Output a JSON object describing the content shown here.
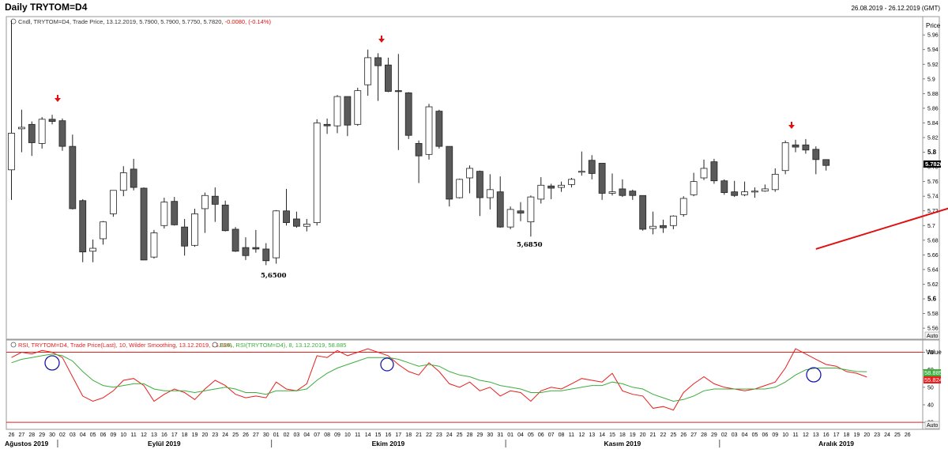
{
  "window": {
    "title": "Daily TRYTOM=D4",
    "date_range": "26.08.2019 - 26.12.2019 (GMT)"
  },
  "price_pane": {
    "legend": {
      "prefix": "Cndl, TRYTOM=D4, Trade Price, 13.12.2019, 5.7900, 5.7900, 5.7750, 5.7820,",
      "change": "-0.0080, (-0.14%)"
    },
    "axis_title": "Price",
    "last_value": "5.7820",
    "auto_label": "Auto",
    "colors": {
      "up_fill": "#ffffff",
      "down_fill": "#5a5a5a",
      "last_tag": "#000000"
    }
  },
  "rsi_pane": {
    "legend_rsi": "RSI, TRYTOM=D4, Trade Price(Last), 10, Wilder Smoothing, 13.12.2019, 55.824,",
    "legend_ema": "EMA, RSI(TRYTOM=D4), 8, 13.12.2019, 58.885",
    "axis_title": "Value",
    "tag_ema": "58.885",
    "tag_rsi": "55.824",
    "auto_label": "Auto",
    "colors": {
      "rsi": "#e81e1e",
      "ema": "#3cae3c",
      "levels": "#e81e1e",
      "circles": "#1a1aa8"
    }
  },
  "x_axis": {
    "day_labels": [
      "26",
      "27",
      "28",
      "29",
      "30",
      "02",
      "03",
      "04",
      "05",
      "06",
      "09",
      "10",
      "11",
      "12",
      "13",
      "16",
      "17",
      "18",
      "19",
      "20",
      "23",
      "24",
      "25",
      "26",
      "27",
      "30",
      "01",
      "02",
      "03",
      "04",
      "07",
      "08",
      "09",
      "10",
      "11",
      "14",
      "15",
      "16",
      "17",
      "18",
      "21",
      "22",
      "23",
      "24",
      "25",
      "28",
      "29",
      "30",
      "31",
      "01",
      "04",
      "05",
      "06",
      "07",
      "08",
      "11",
      "12",
      "13",
      "14",
      "15",
      "18",
      "19",
      "20",
      "21",
      "22",
      "25",
      "26",
      "27",
      "28",
      "29",
      "02",
      "03",
      "04",
      "05",
      "06",
      "09",
      "10",
      "11",
      "12",
      "13",
      "16",
      "17",
      "18",
      "19",
      "20",
      "23",
      "24",
      "25",
      "26"
    ],
    "month_labels": [
      "Ağustos 2019",
      "Eylül 2019",
      "Ekim 2019",
      "Kasım 2019",
      "Aralık 2019"
    ]
  },
  "annotations": {
    "low_1": "5,6500",
    "low_2": "5,6850"
  },
  "chart_data": [
    {
      "type": "candlestick",
      "ylabel": "Price",
      "ylim": [
        5.545,
        5.985
      ],
      "y_ticks": [
        5.56,
        5.58,
        5.6,
        5.62,
        5.64,
        5.66,
        5.68,
        5.7,
        5.72,
        5.74,
        5.76,
        5.78,
        5.8,
        5.82,
        5.84,
        5.86,
        5.88,
        5.9,
        5.92,
        5.94,
        5.96
      ],
      "y_tick_labels": [
        "5.56",
        "5.58",
        "5.6",
        "5.62",
        "5.64",
        "5.66",
        "5.68",
        "5.7",
        "5.72",
        "5.74",
        "5.76",
        "5.78",
        "5.8",
        "5.82",
        "5.84",
        "5.86",
        "5.88",
        "5.9",
        "5.92",
        "5.94",
        "5.96"
      ],
      "grid": false,
      "candles": [
        {
          "o": 5.776,
          "h": 5.98,
          "l": 5.735,
          "c": 5.826
        },
        {
          "o": 5.832,
          "h": 5.858,
          "l": 5.8,
          "c": 5.834
        },
        {
          "o": 5.838,
          "h": 5.842,
          "l": 5.795,
          "c": 5.813
        },
        {
          "o": 5.812,
          "h": 5.848,
          "l": 5.805,
          "c": 5.845
        },
        {
          "o": 5.845,
          "h": 5.851,
          "l": 5.838,
          "c": 5.842
        },
        {
          "o": 5.843,
          "h": 5.846,
          "l": 5.802,
          "c": 5.808
        },
        {
          "o": 5.808,
          "h": 5.824,
          "l": 5.722,
          "c": 5.723
        },
        {
          "o": 5.734,
          "h": 5.736,
          "l": 5.65,
          "c": 5.664
        },
        {
          "o": 5.665,
          "h": 5.681,
          "l": 5.65,
          "c": 5.669
        },
        {
          "o": 5.682,
          "h": 5.706,
          "l": 5.674,
          "c": 5.705
        },
        {
          "o": 5.716,
          "h": 5.748,
          "l": 5.712,
          "c": 5.748
        },
        {
          "o": 5.748,
          "h": 5.781,
          "l": 5.74,
          "c": 5.772
        },
        {
          "o": 5.777,
          "h": 5.791,
          "l": 5.748,
          "c": 5.752
        },
        {
          "o": 5.751,
          "h": 5.752,
          "l": 5.653,
          "c": 5.653
        },
        {
          "o": 5.657,
          "h": 5.694,
          "l": 5.655,
          "c": 5.69
        },
        {
          "o": 5.7,
          "h": 5.738,
          "l": 5.696,
          "c": 5.732
        },
        {
          "o": 5.733,
          "h": 5.739,
          "l": 5.7,
          "c": 5.701
        },
        {
          "o": 5.698,
          "h": 5.709,
          "l": 5.659,
          "c": 5.672
        },
        {
          "o": 5.673,
          "h": 5.723,
          "l": 5.671,
          "c": 5.716
        },
        {
          "o": 5.723,
          "h": 5.745,
          "l": 5.69,
          "c": 5.741
        },
        {
          "o": 5.74,
          "h": 5.752,
          "l": 5.705,
          "c": 5.729
        },
        {
          "o": 5.728,
          "h": 5.734,
          "l": 5.692,
          "c": 5.693
        },
        {
          "o": 5.695,
          "h": 5.698,
          "l": 5.664,
          "c": 5.665
        },
        {
          "o": 5.67,
          "h": 5.684,
          "l": 5.653,
          "c": 5.659
        },
        {
          "o": 5.67,
          "h": 5.694,
          "l": 5.663,
          "c": 5.668
        },
        {
          "o": 5.668,
          "h": 5.676,
          "l": 5.646,
          "c": 5.652
        },
        {
          "o": 5.656,
          "h": 5.721,
          "l": 5.648,
          "c": 5.72
        },
        {
          "o": 5.72,
          "h": 5.75,
          "l": 5.7,
          "c": 5.704
        },
        {
          "o": 5.709,
          "h": 5.719,
          "l": 5.697,
          "c": 5.699
        },
        {
          "o": 5.699,
          "h": 5.709,
          "l": 5.692,
          "c": 5.702
        },
        {
          "o": 5.704,
          "h": 5.845,
          "l": 5.7,
          "c": 5.84
        },
        {
          "o": 5.838,
          "h": 5.846,
          "l": 5.825,
          "c": 5.836
        },
        {
          "o": 5.836,
          "h": 5.878,
          "l": 5.826,
          "c": 5.876
        },
        {
          "o": 5.876,
          "h": 5.876,
          "l": 5.822,
          "c": 5.837
        },
        {
          "o": 5.838,
          "h": 5.888,
          "l": 5.836,
          "c": 5.884
        },
        {
          "o": 5.892,
          "h": 5.94,
          "l": 5.877,
          "c": 5.929
        },
        {
          "o": 5.929,
          "h": 5.935,
          "l": 5.87,
          "c": 5.918
        },
        {
          "o": 5.919,
          "h": 5.929,
          "l": 5.882,
          "c": 5.883
        },
        {
          "o": 5.884,
          "h": 5.934,
          "l": 5.803,
          "c": 5.883
        },
        {
          "o": 5.881,
          "h": 5.882,
          "l": 5.818,
          "c": 5.823
        },
        {
          "o": 5.812,
          "h": 5.816,
          "l": 5.758,
          "c": 5.795
        },
        {
          "o": 5.797,
          "h": 5.866,
          "l": 5.79,
          "c": 5.862
        },
        {
          "o": 5.856,
          "h": 5.858,
          "l": 5.805,
          "c": 5.808
        },
        {
          "o": 5.808,
          "h": 5.808,
          "l": 5.726,
          "c": 5.736
        },
        {
          "o": 5.738,
          "h": 5.764,
          "l": 5.737,
          "c": 5.763
        },
        {
          "o": 5.765,
          "h": 5.782,
          "l": 5.744,
          "c": 5.778
        },
        {
          "o": 5.774,
          "h": 5.775,
          "l": 5.713,
          "c": 5.738
        },
        {
          "o": 5.738,
          "h": 5.77,
          "l": 5.722,
          "c": 5.749
        },
        {
          "o": 5.746,
          "h": 5.767,
          "l": 5.697,
          "c": 5.698
        },
        {
          "o": 5.698,
          "h": 5.726,
          "l": 5.695,
          "c": 5.722
        },
        {
          "o": 5.72,
          "h": 5.732,
          "l": 5.706,
          "c": 5.717
        },
        {
          "o": 5.705,
          "h": 5.741,
          "l": 5.685,
          "c": 5.739
        },
        {
          "o": 5.736,
          "h": 5.766,
          "l": 5.73,
          "c": 5.755
        },
        {
          "o": 5.754,
          "h": 5.757,
          "l": 5.736,
          "c": 5.751
        },
        {
          "o": 5.752,
          "h": 5.76,
          "l": 5.746,
          "c": 5.755
        },
        {
          "o": 5.756,
          "h": 5.765,
          "l": 5.752,
          "c": 5.763
        },
        {
          "o": 5.774,
          "h": 5.801,
          "l": 5.768,
          "c": 5.774
        },
        {
          "o": 5.789,
          "h": 5.796,
          "l": 5.763,
          "c": 5.771
        },
        {
          "o": 5.785,
          "h": 5.785,
          "l": 5.735,
          "c": 5.744
        },
        {
          "o": 5.744,
          "h": 5.771,
          "l": 5.741,
          "c": 5.746
        },
        {
          "o": 5.75,
          "h": 5.763,
          "l": 5.739,
          "c": 5.741
        },
        {
          "o": 5.747,
          "h": 5.749,
          "l": 5.735,
          "c": 5.741
        },
        {
          "o": 5.741,
          "h": 5.741,
          "l": 5.693,
          "c": 5.695
        },
        {
          "o": 5.696,
          "h": 5.719,
          "l": 5.688,
          "c": 5.699
        },
        {
          "o": 5.7,
          "h": 5.708,
          "l": 5.69,
          "c": 5.697
        },
        {
          "o": 5.7,
          "h": 5.714,
          "l": 5.695,
          "c": 5.713
        },
        {
          "o": 5.715,
          "h": 5.74,
          "l": 5.712,
          "c": 5.737
        },
        {
          "o": 5.742,
          "h": 5.772,
          "l": 5.74,
          "c": 5.76
        },
        {
          "o": 5.765,
          "h": 5.79,
          "l": 5.762,
          "c": 5.778
        },
        {
          "o": 5.787,
          "h": 5.791,
          "l": 5.757,
          "c": 5.761
        },
        {
          "o": 5.761,
          "h": 5.763,
          "l": 5.742,
          "c": 5.745
        },
        {
          "o": 5.746,
          "h": 5.761,
          "l": 5.739,
          "c": 5.741
        },
        {
          "o": 5.742,
          "h": 5.76,
          "l": 5.74,
          "c": 5.746
        },
        {
          "o": 5.746,
          "h": 5.752,
          "l": 5.738,
          "c": 5.747
        },
        {
          "o": 5.747,
          "h": 5.756,
          "l": 5.746,
          "c": 5.75
        },
        {
          "o": 5.749,
          "h": 5.778,
          "l": 5.746,
          "c": 5.77
        },
        {
          "o": 5.775,
          "h": 5.816,
          "l": 5.77,
          "c": 5.813
        },
        {
          "o": 5.81,
          "h": 5.817,
          "l": 5.8,
          "c": 5.807
        },
        {
          "o": 5.81,
          "h": 5.818,
          "l": 5.798,
          "c": 5.803
        },
        {
          "o": 5.804,
          "h": 5.808,
          "l": 5.77,
          "c": 5.79
        },
        {
          "o": 5.79,
          "h": 5.79,
          "l": 5.775,
          "c": 5.782
        }
      ],
      "annotations": [
        "5,6500",
        "5,6850"
      ],
      "trendline": [
        [
          5.668,
          79
        ],
        [
          5.8,
          110
        ]
      ]
    },
    {
      "type": "line",
      "ylabel": "Value",
      "ylim": [
        26,
        77
      ],
      "y_ticks": [
        30,
        40,
        50,
        60,
        70
      ],
      "levels": [
        30,
        70
      ],
      "series": [
        {
          "name": "RSI",
          "values": [
            67,
            70,
            69,
            71,
            70,
            67,
            56,
            45,
            42,
            44,
            48,
            54,
            55,
            51,
            42,
            46,
            49,
            47,
            43,
            49,
            54,
            51,
            46,
            44,
            45,
            44,
            53,
            49,
            48,
            52,
            68,
            67,
            71,
            68,
            70,
            72,
            70,
            68,
            63,
            59,
            57,
            64,
            59,
            52,
            50,
            53,
            48,
            50,
            45,
            48,
            47,
            42,
            48,
            50,
            49,
            52,
            55,
            54,
            53,
            58,
            48,
            46,
            45,
            38,
            39,
            37,
            47,
            52,
            56,
            52,
            50,
            49,
            48,
            49,
            51,
            53,
            61,
            72,
            69,
            66,
            63,
            62,
            59,
            58,
            55.824
          ]
        },
        {
          "name": "EMA",
          "values": [
            64,
            66,
            67,
            68,
            69,
            68,
            65,
            59,
            54,
            51,
            50,
            51,
            52,
            52,
            49,
            48,
            48,
            48,
            47,
            48,
            49,
            50,
            49,
            47,
            47,
            46,
            48,
            48,
            48,
            49,
            54,
            58,
            61,
            63,
            65,
            67,
            67,
            67,
            66,
            64,
            62,
            63,
            62,
            59,
            57,
            56,
            54,
            53,
            51,
            50,
            49,
            47,
            47,
            48,
            48,
            49,
            50,
            51,
            51,
            53,
            52,
            50,
            49,
            46,
            44,
            42,
            43,
            45,
            48,
            49,
            49,
            49,
            49,
            49,
            49,
            50,
            53,
            57,
            60,
            61,
            61,
            61,
            60,
            59,
            58.885
          ]
        }
      ]
    }
  ]
}
